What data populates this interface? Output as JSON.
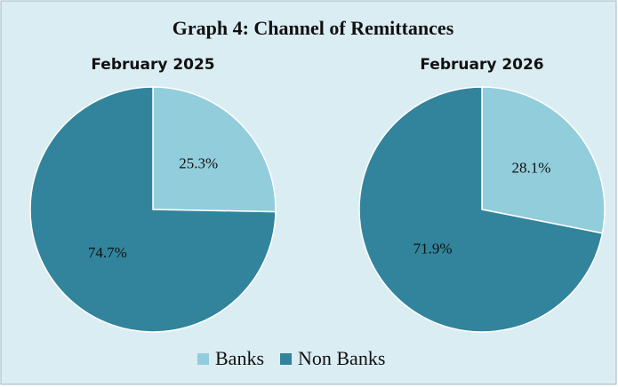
{
  "title": "Graph 4: Channel of Remittances",
  "chart_data": [
    {
      "type": "pie",
      "title": "February 2025",
      "categories": [
        "Banks",
        "Non Banks"
      ],
      "values": [
        25.3,
        74.7
      ],
      "value_labels": [
        "25.3%",
        "74.7%"
      ],
      "colors": [
        "#92cddc",
        "#31849b"
      ]
    },
    {
      "type": "pie",
      "title": "February 2026",
      "categories": [
        "Banks",
        "Non Banks"
      ],
      "values": [
        28.1,
        71.9
      ],
      "value_labels": [
        "28.1%",
        "71.9%"
      ],
      "colors": [
        "#92cddc",
        "#31849b"
      ]
    }
  ]
}
